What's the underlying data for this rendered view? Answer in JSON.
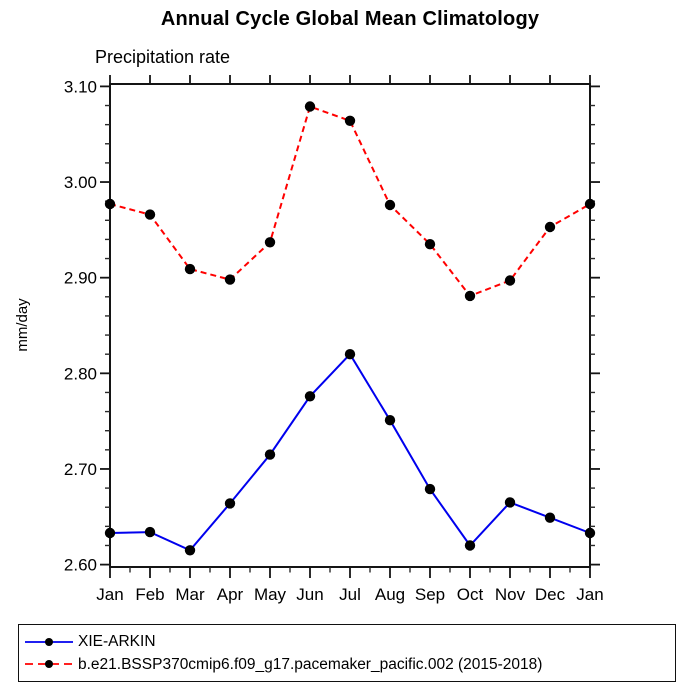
{
  "chart_data": {
    "type": "line",
    "title": "Annual Cycle Global Mean Climatology",
    "subtitle": "Precipitation rate",
    "ylabel": "mm/day",
    "xlabel": "",
    "grid": false,
    "legend_position": "bottom",
    "categories": [
      "Jan",
      "Feb",
      "Mar",
      "Apr",
      "May",
      "Jun",
      "Jul",
      "Aug",
      "Sep",
      "Oct",
      "Nov",
      "Dec",
      "Jan"
    ],
    "ylim": [
      2.5975,
      3.1025
    ],
    "yticks": {
      "values": [
        2.6,
        2.7,
        2.8,
        2.9,
        3.0,
        3.1
      ],
      "labels": [
        "2.60",
        "2.70",
        "2.80",
        "2.90",
        "3.00",
        "3.10"
      ],
      "minor_step": 0.02
    },
    "x_minor_ticks": "midpoints",
    "series": [
      {
        "name": "XIE-ARKIN",
        "color": "#0000ee",
        "line_style": "solid",
        "marker": "circle",
        "marker_color": "#000000",
        "values": [
          2.633,
          2.634,
          2.615,
          2.664,
          2.715,
          2.776,
          2.82,
          2.751,
          2.679,
          2.62,
          2.665,
          2.649,
          2.633
        ]
      },
      {
        "name": "b.e21.BSSP370cmip6.f09_g17.pacemaker_pacific.002 (2015-2018)",
        "color": "#ff0000",
        "line_style": "dashed",
        "marker": "circle",
        "marker_color": "#000000",
        "values": [
          2.977,
          2.966,
          2.909,
          2.898,
          2.937,
          3.079,
          3.064,
          2.976,
          2.935,
          2.881,
          2.897,
          2.953,
          2.977
        ]
      }
    ]
  },
  "legend": {
    "entries": [
      {
        "label": "XIE-ARKIN",
        "color": "#0000ee",
        "dash": "solid"
      },
      {
        "label": "b.e21.BSSP370cmip6.f09_g17.pacemaker_pacific.002 (2015-2018)",
        "color": "#ff0000",
        "dash": "dashed"
      }
    ]
  }
}
